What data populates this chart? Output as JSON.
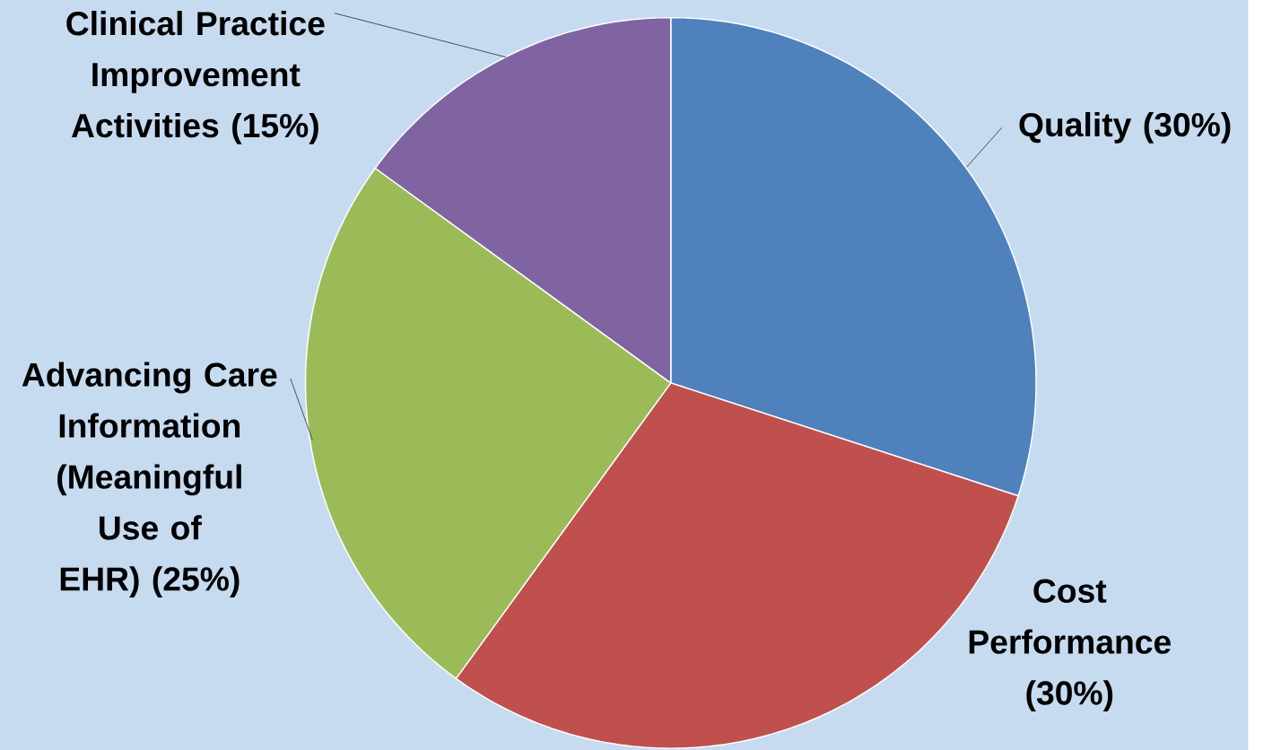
{
  "chart_data": {
    "type": "pie",
    "categories": [
      "Quality",
      "Cost Performance",
      "Advancing Care Information (Meaningful Use of EHR)",
      "Clinical Practice Improvement Activities"
    ],
    "values": [
      30,
      30,
      25,
      15
    ],
    "value_labels": [
      "(30%)",
      "(30%)",
      "(25%)",
      "(15%)"
    ],
    "colors": [
      "#4f81bd",
      "#c0504d",
      "#9bbb59",
      "#8064a2"
    ]
  }
}
